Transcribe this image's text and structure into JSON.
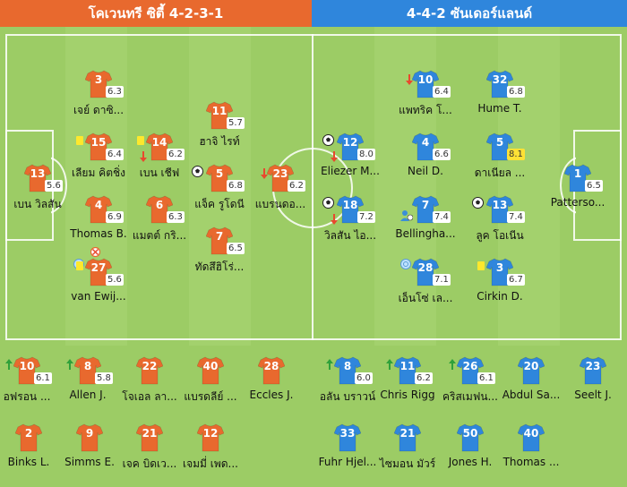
{
  "header": {
    "home": "โคเวนทรี ซิตี้ 4-2-3-1",
    "away": "4-4-2 ซันเดอร์แลนด์"
  },
  "colors": {
    "home": "#e8692e",
    "away": "#2f86dc",
    "pitch": "#9ccc65"
  },
  "pitch_players": [
    {
      "id": "h3",
      "team": "home",
      "number": "3",
      "name": "เจย์ ดาซิ...",
      "rating": "6.3"
    },
    {
      "id": "h15",
      "team": "home",
      "number": "15",
      "name": "เลียม คิตชิ่ง",
      "rating": "6.4",
      "icons": [
        "yellow-card"
      ]
    },
    {
      "id": "h14",
      "team": "home",
      "number": "14",
      "name": "เบน เชีฟ",
      "rating": "6.2",
      "icons": [
        "yellow-card",
        "sub-off"
      ]
    },
    {
      "id": "h11",
      "team": "home",
      "number": "11",
      "name": "ฮาจิ ไรท์",
      "rating": "5.7"
    },
    {
      "id": "h13",
      "team": "home",
      "number": "13",
      "name": "เบน วิลสัน",
      "rating": "5.6"
    },
    {
      "id": "h5",
      "team": "home",
      "number": "5",
      "name": "แจ็ค รูโดนี",
      "rating": "6.8",
      "icons": [
        "goal"
      ]
    },
    {
      "id": "h23",
      "team": "home",
      "number": "23",
      "name": "แบรนดอ...",
      "rating": "6.2",
      "icons": [
        "sub-off"
      ]
    },
    {
      "id": "h4",
      "team": "home",
      "number": "4",
      "name": "Thomas B.",
      "rating": "6.9"
    },
    {
      "id": "h6",
      "team": "home",
      "number": "6",
      "name": "แมตต์ กริ...",
      "rating": "6.3"
    },
    {
      "id": "h7",
      "team": "home",
      "number": "7",
      "name": "ทัดสึฮิโร่...",
      "rating": "6.5"
    },
    {
      "id": "h27",
      "team": "home",
      "number": "27",
      "name": "van Ewij...",
      "rating": "5.6",
      "icons": [
        "own-goal",
        "captain",
        "yellow-card"
      ]
    },
    {
      "id": "a10",
      "team": "away",
      "number": "10",
      "name": "แพทริค โ...",
      "rating": "6.4",
      "icons": [
        "sub-off"
      ]
    },
    {
      "id": "a32",
      "team": "away",
      "number": "32",
      "name": "Hume T.",
      "rating": "6.8"
    },
    {
      "id": "a12",
      "team": "away",
      "number": "12",
      "name": "Eliezer M...",
      "rating": "8.0",
      "icons": [
        "goal",
        "sub-off"
      ]
    },
    {
      "id": "a4",
      "team": "away",
      "number": "4",
      "name": "Neil D.",
      "rating": "6.6"
    },
    {
      "id": "a5",
      "team": "away",
      "number": "5",
      "name": "ดาเนียล ...",
      "rating": "8.1",
      "high": true
    },
    {
      "id": "a1",
      "team": "away",
      "number": "1",
      "name": "Patterso...",
      "rating": "6.5"
    },
    {
      "id": "a18",
      "team": "away",
      "number": "18",
      "name": "วิลสัน ไอ...",
      "rating": "7.2",
      "icons": [
        "goal",
        "sub-off"
      ]
    },
    {
      "id": "a7",
      "team": "away",
      "number": "7",
      "name": "Bellingha...",
      "rating": "7.4",
      "icons": [
        "assist"
      ]
    },
    {
      "id": "a13",
      "team": "away",
      "number": "13",
      "name": "ลูค โอเนีน",
      "rating": "7.4",
      "icons": [
        "goal"
      ]
    },
    {
      "id": "a28",
      "team": "away",
      "number": "28",
      "name": "เอ็นโซ่ เล...",
      "rating": "7.1",
      "icons": [
        "captain"
      ]
    },
    {
      "id": "a3",
      "team": "away",
      "number": "3",
      "name": "Cirkin D.",
      "rating": "6.7",
      "icons": [
        "yellow-card"
      ]
    }
  ],
  "bench_players": [
    {
      "id": "hb10",
      "team": "home",
      "number": "10",
      "name": "อฟรอน ...",
      "rating": "6.1",
      "icons": [
        "sub-on"
      ]
    },
    {
      "id": "hb8",
      "team": "home",
      "number": "8",
      "name": "Allen J.",
      "rating": "5.8",
      "icons": [
        "sub-on"
      ]
    },
    {
      "id": "hb22",
      "team": "home",
      "number": "22",
      "name": "โจเอล ลา..."
    },
    {
      "id": "hb40",
      "team": "home",
      "number": "40",
      "name": "แบรดลีย์ ..."
    },
    {
      "id": "hb28",
      "team": "home",
      "number": "28",
      "name": "Eccles J."
    },
    {
      "id": "hb2",
      "team": "home",
      "number": "2",
      "name": "Binks L."
    },
    {
      "id": "hb9",
      "team": "home",
      "number": "9",
      "name": "Simms E."
    },
    {
      "id": "hb21",
      "team": "home",
      "number": "21",
      "name": "เจค บิดเว..."
    },
    {
      "id": "hb12",
      "team": "home",
      "number": "12",
      "name": "เจมมี่ เพด..."
    },
    {
      "id": "ab8",
      "team": "away",
      "number": "8",
      "name": "อลัน บราวน์",
      "rating": "6.0",
      "icons": [
        "sub-on"
      ]
    },
    {
      "id": "ab11",
      "team": "away",
      "number": "11",
      "name": "Chris Rigg",
      "rating": "6.2",
      "icons": [
        "sub-on"
      ]
    },
    {
      "id": "ab26",
      "team": "away",
      "number": "26",
      "name": "คริสเมฟน...",
      "rating": "6.1",
      "icons": [
        "sub-on"
      ]
    },
    {
      "id": "ab20",
      "team": "away",
      "number": "20",
      "name": "Abdul Sa..."
    },
    {
      "id": "ab23",
      "team": "away",
      "number": "23",
      "name": "Seelt J."
    },
    {
      "id": "ab33",
      "team": "away",
      "number": "33",
      "name": "Fuhr Hjel..."
    },
    {
      "id": "ab21",
      "team": "away",
      "number": "21",
      "name": "ไซมอน มัวร์"
    },
    {
      "id": "ab50",
      "team": "away",
      "number": "50",
      "name": "Jones H."
    },
    {
      "id": "ab40",
      "team": "away",
      "number": "40",
      "name": "Thomas ..."
    }
  ]
}
